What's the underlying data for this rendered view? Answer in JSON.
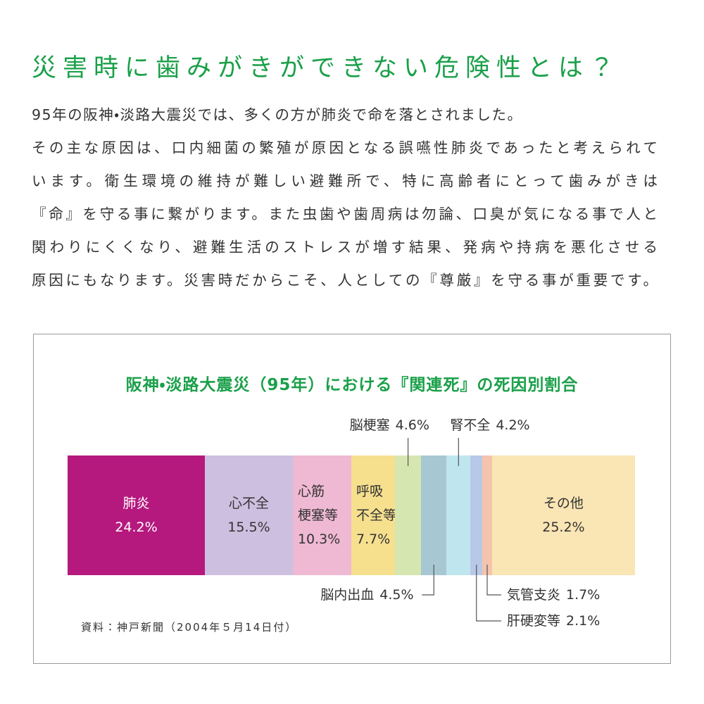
{
  "heading": "災害時に歯みがきができない危険性とは？",
  "paragraph": [
    "95年の阪神・淡路大震災では、多くの方が肺炎で命を落とされました。",
    "その主な原因は、口内細菌の繁殖が原因となる誤嚥性肺炎であったと考えられて",
    "います。衛生環境の維持が難しい避難所で、特に高齢者にとって歯みがきは",
    "『命』を守る事に繋がります。また虫歯や歯周病は勿論、口臭が気になる事で人と",
    "関わりにくくなり、避難生活のストレスが増す結果、発病や持病を悪化させる",
    "原因にもなります。災害時だからこそ、人としての『尊厳』を守る事が重要です。"
  ],
  "chart_data": {
    "type": "stacked-bar",
    "title": "阪神・淡路大震災（95年）における『関連死』の死因別割合",
    "source": "資料：神戸新聞（2004年５月14日付）",
    "categories": [
      "肺炎",
      "心不全",
      "心筋\n梗塞等",
      "呼吸\n不全等",
      "脳梗塞",
      "脳内出血",
      "腎不全",
      "肝硬変等",
      "気管支炎",
      "その他"
    ],
    "values": [
      24.2,
      15.5,
      10.3,
      7.7,
      4.6,
      4.5,
      4.2,
      2.1,
      1.7,
      25.2
    ],
    "value_labels": [
      "24.2%",
      "15.5%",
      "10.3%",
      "7.7%",
      "4.6%",
      "4.5%",
      "4.2%",
      "2.1%",
      "1.7%",
      "25.2%"
    ],
    "colors": [
      "#b5197e",
      "#cdbfe0",
      "#efb9d3",
      "#f6e08e",
      "#d6e6b0",
      "#a7c8d3",
      "#bfe6ee",
      "#b8c8e8",
      "#f4c4ad",
      "#fae5b4"
    ],
    "xlim": [
      0,
      100
    ]
  }
}
